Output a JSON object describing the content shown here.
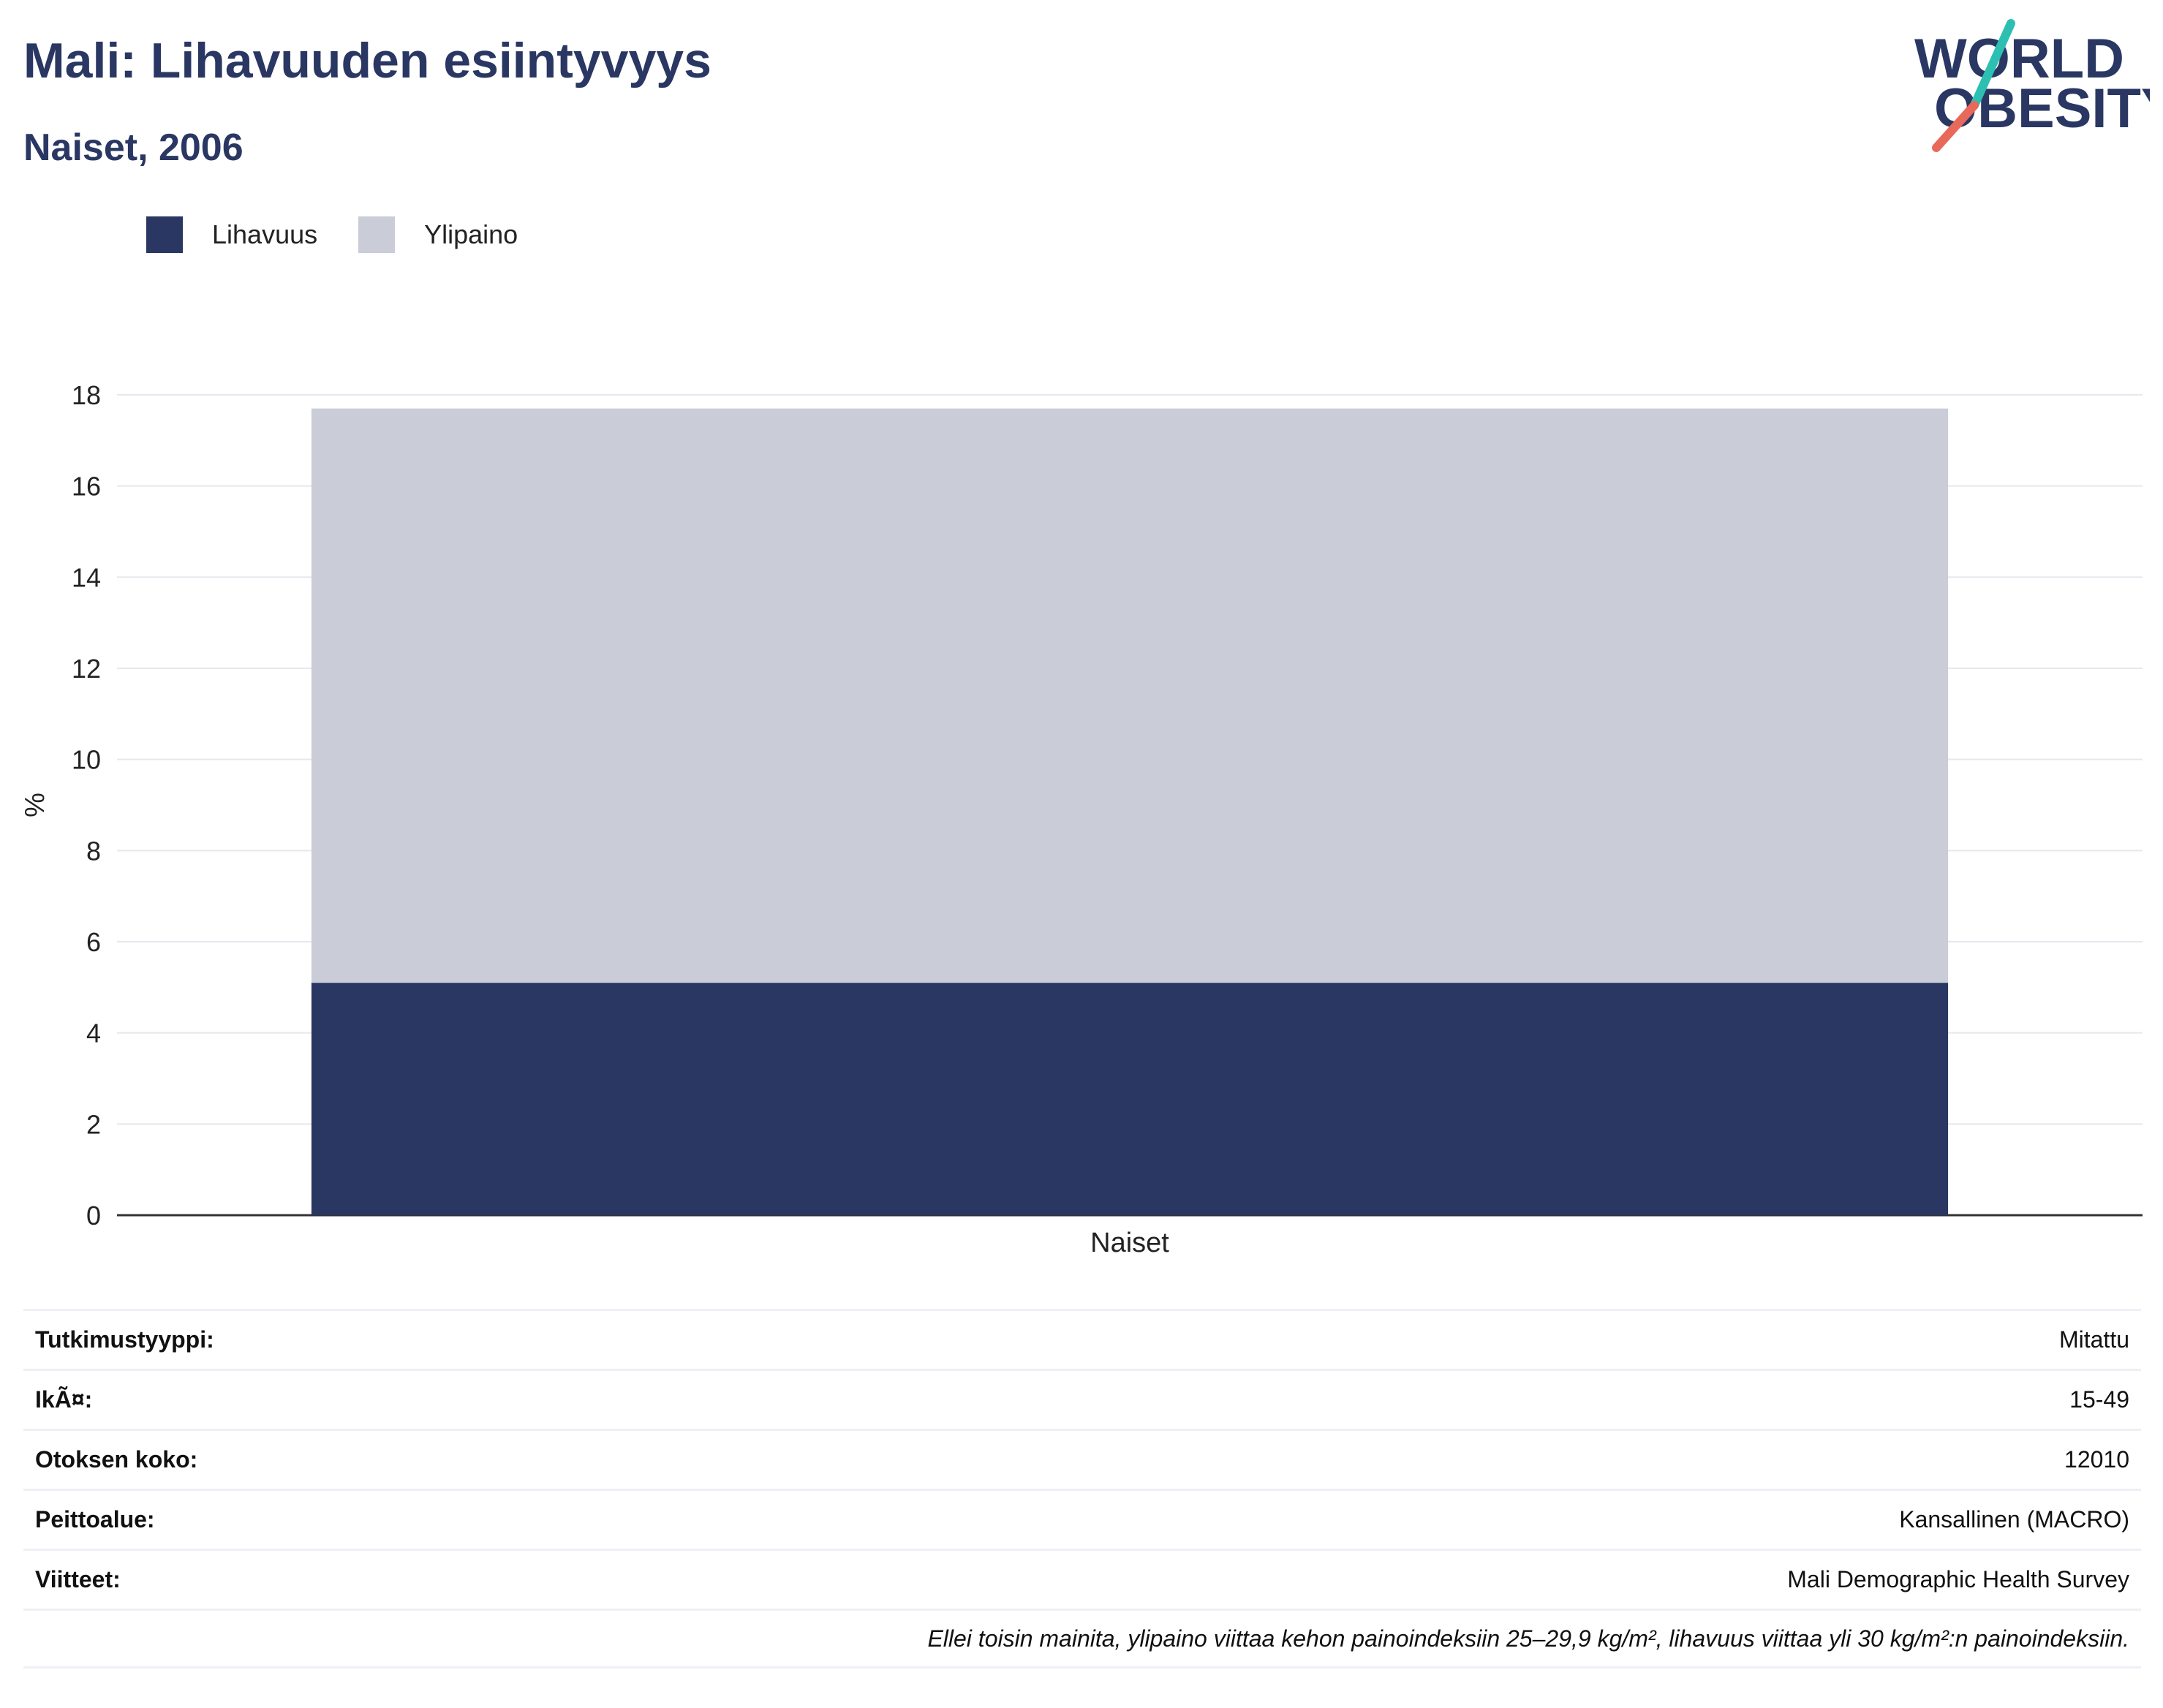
{
  "header": {
    "title": "Mali: Lihavuuden esiintyvyys",
    "subtitle": "Naiset, 2006"
  },
  "logo": {
    "line1": "WORLD",
    "line2": "OBESITY"
  },
  "colors": {
    "obesity": "#2a3763",
    "overweight": "#cacdd8",
    "accent_teal": "#2ebfb3",
    "accent_red": "#e8685a"
  },
  "chart_data": {
    "type": "bar",
    "stacked": true,
    "categories": [
      "Naiset"
    ],
    "series": [
      {
        "name": "Lihavuus",
        "values": [
          5.1
        ]
      },
      {
        "name": "Ylipaino",
        "values": [
          12.6
        ]
      }
    ],
    "title": "Mali: Lihavuuden esiintyvyys",
    "subtitle": "Naiset, 2006",
    "xlabel": "",
    "ylabel": "%",
    "ylim": [
      0,
      18
    ],
    "yticks": [
      "0",
      "2",
      "4",
      "6",
      "8",
      "10",
      "12",
      "14",
      "16",
      "18"
    ],
    "grid": true,
    "legend": "top-left"
  },
  "info": {
    "rows": [
      {
        "label": "Tutkimustyyppi:",
        "value": "Mitattu"
      },
      {
        "label": "IkÃ¤:",
        "value": "15-49"
      },
      {
        "label": "Otoksen koko:",
        "value": "12010"
      },
      {
        "label": "Peittoalue:",
        "value": "Kansallinen (MACRO)"
      },
      {
        "label": "Viitteet:",
        "value": "Mali Demographic Health Survey"
      }
    ],
    "note": "Ellei toisin mainita, ylipaino viittaa kehon painoindeksiin 25–29,9 kg/m², lihavuus viittaa yli 30 kg/m²:n painoindeksiin."
  }
}
